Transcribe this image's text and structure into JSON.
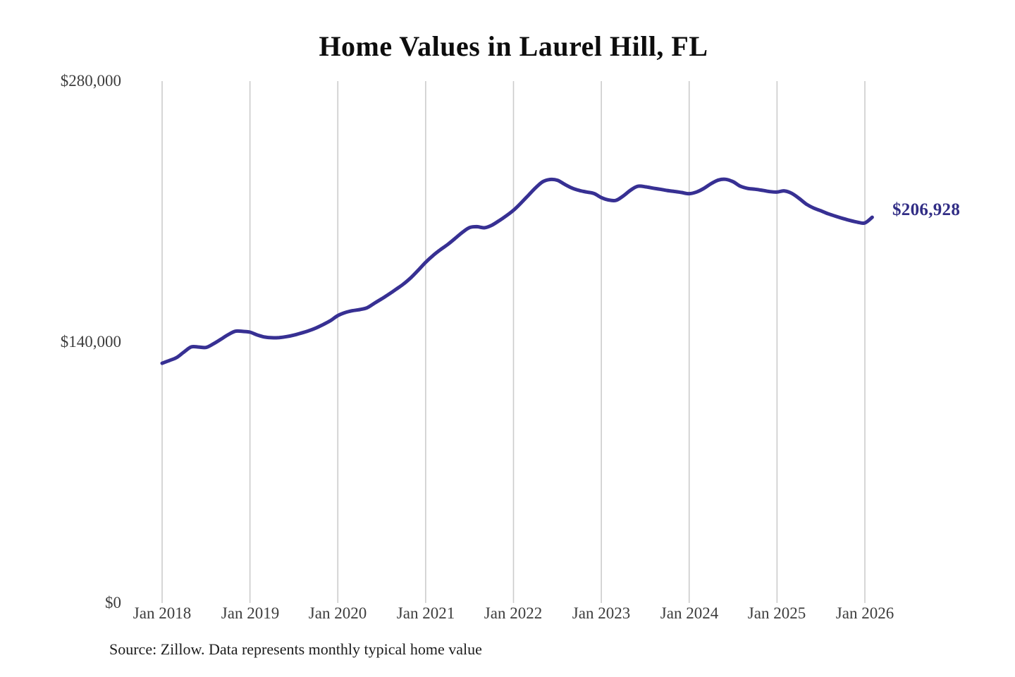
{
  "page": {
    "source_note": "Source: Zillow. Data represents monthly typical home value"
  },
  "chart_data": {
    "type": "line",
    "title": "Home Values in Laurel Hill, FL",
    "series_name": "Monthly typical home value",
    "unit": "USD",
    "grid": "vertical-only",
    "legend": "none",
    "line_color": "#373093",
    "gridline_color": "#cccccc",
    "axis_text_color": "#3d3d3d",
    "ylim": [
      0,
      280000
    ],
    "y_tick_values": [
      0,
      140000,
      280000
    ],
    "y_tick_labels": [
      "$0",
      "$140,000",
      "$280,000"
    ],
    "x_tick_labels": [
      "Jan 2018",
      "Jan 2019",
      "Jan 2020",
      "Jan 2021",
      "Jan 2022",
      "Jan 2023",
      "Jan 2024",
      "Jan 2025",
      "Jan 2026"
    ],
    "end_label": "$206,928",
    "end_value": 206928,
    "months": [
      "2018-01",
      "2018-02",
      "2018-03",
      "2018-04",
      "2018-05",
      "2018-06",
      "2018-07",
      "2018-08",
      "2018-09",
      "2018-10",
      "2018-11",
      "2018-12",
      "2019-01",
      "2019-02",
      "2019-03",
      "2019-04",
      "2019-05",
      "2019-06",
      "2019-07",
      "2019-08",
      "2019-09",
      "2019-10",
      "2019-11",
      "2019-12",
      "2020-01",
      "2020-02",
      "2020-03",
      "2020-04",
      "2020-05",
      "2020-06",
      "2020-07",
      "2020-08",
      "2020-09",
      "2020-10",
      "2020-11",
      "2020-12",
      "2021-01",
      "2021-02",
      "2021-03",
      "2021-04",
      "2021-05",
      "2021-06",
      "2021-07",
      "2021-08",
      "2021-09",
      "2021-10",
      "2021-11",
      "2021-12",
      "2022-01",
      "2022-02",
      "2022-03",
      "2022-04",
      "2022-05",
      "2022-06",
      "2022-07",
      "2022-08",
      "2022-09",
      "2022-10",
      "2022-11",
      "2022-12",
      "2023-01",
      "2023-02",
      "2023-03",
      "2023-04",
      "2023-05",
      "2023-06",
      "2023-07",
      "2023-08",
      "2023-09",
      "2023-10",
      "2023-11",
      "2023-12",
      "2024-01",
      "2024-02",
      "2024-03",
      "2024-04",
      "2024-05",
      "2024-06",
      "2024-07",
      "2024-08",
      "2024-09",
      "2024-10",
      "2024-11",
      "2024-12",
      "2025-01",
      "2025-02",
      "2025-03",
      "2025-04",
      "2025-05",
      "2025-06",
      "2025-07",
      "2025-08",
      "2025-09",
      "2025-10",
      "2025-11",
      "2025-12",
      "2026-01",
      "2026-02"
    ],
    "values": [
      128600,
      130100,
      131700,
      134700,
      137400,
      137300,
      137100,
      139000,
      141400,
      143900,
      145800,
      145700,
      145300,
      143800,
      142700,
      142300,
      142400,
      142900,
      143700,
      144800,
      146000,
      147500,
      149400,
      151500,
      154200,
      155800,
      156800,
      157400,
      158400,
      160800,
      163200,
      165700,
      168400,
      171200,
      174600,
      178600,
      182800,
      186400,
      189500,
      192300,
      195500,
      198800,
      201400,
      201900,
      201300,
      202600,
      205000,
      207700,
      210700,
      214500,
      218600,
      222700,
      226000,
      227200,
      226800,
      224600,
      222600,
      221300,
      220500,
      219700,
      217500,
      216200,
      216000,
      218400,
      221500,
      223600,
      223300,
      222600,
      222000,
      221300,
      220800,
      220200,
      219600,
      220500,
      222400,
      225000,
      226900,
      227300,
      226000,
      223600,
      222400,
      222000,
      221400,
      220700,
      220500,
      221100,
      219800,
      217100,
      214000,
      211900,
      210400,
      208800,
      207500,
      206300,
      205200,
      204300,
      203900,
      206928
    ]
  }
}
